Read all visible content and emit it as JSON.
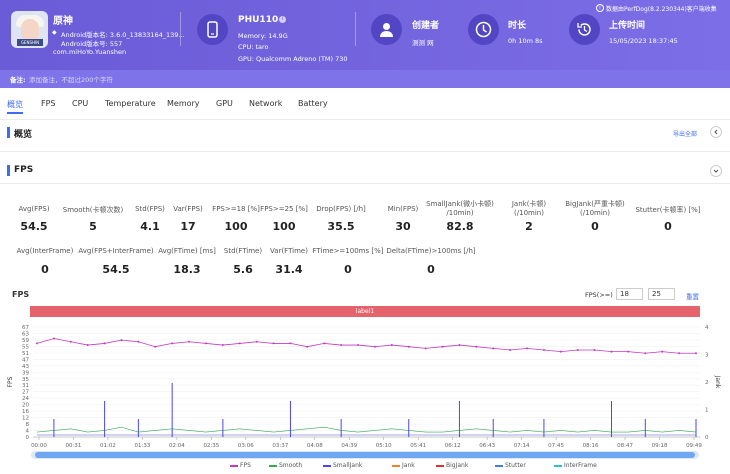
{
  "app": {
    "name": "原神",
    "version_name": "Android版本名: 3.6.0_13833164_139...",
    "version_code": "Android版本号: 557",
    "package": "com.miHoYo.Yuanshen"
  },
  "device": {
    "name": "PHU110",
    "memory": "Memory: 14.9G",
    "cpu": "CPU: taro",
    "gpu": "GPU: Qualcomm Adreno (TM) 730"
  },
  "creator": {
    "label": "创建者",
    "value": "测测 网"
  },
  "duration": {
    "label": "时长",
    "value": "0h 10m 8s"
  },
  "upload": {
    "label": "上传时间",
    "value": "15/05/2023 18:37:45"
  },
  "data_source": "数据由PerfDog(8.2.230344)客户端收集",
  "note": {
    "label": "备注:",
    "placeholder": "添加备注，不超过200个字符"
  },
  "tabs": [
    "概览",
    "FPS",
    "CPU",
    "Temperature",
    "Memory",
    "GPU",
    "Network",
    "Battery"
  ],
  "overview": {
    "title": "概览",
    "export": "导出全部"
  },
  "fps_section": {
    "title": "FPS"
  },
  "metrics_row1": [
    {
      "label": "Avg(FPS)",
      "value": "54.5"
    },
    {
      "label": "Smooth(卡顿次数)",
      "value": "5"
    },
    {
      "label": "Std(FPS)",
      "value": "4.1"
    },
    {
      "label": "Var(FPS)",
      "value": "17"
    },
    {
      "label": "FPS>=18 [%]",
      "value": "100"
    },
    {
      "label": "FPS>=25 [%]",
      "value": "100"
    },
    {
      "label": "Drop(FPS) [/h]",
      "value": "35.5"
    },
    {
      "label": "Min(FPS)",
      "value": "30"
    },
    {
      "label": "SmallJank(微小卡顿)\n/10min)",
      "value": "82.8"
    },
    {
      "label": "Jank(卡顿)\n(/10min)",
      "value": "2"
    },
    {
      "label": "BigJank(严重卡顿)\n(/10min)",
      "value": "0"
    },
    {
      "label": "Stutter(卡顿率) [%]",
      "value": "0"
    }
  ],
  "metrics_row2": [
    {
      "label": "Avg(InterFrame)",
      "value": "0"
    },
    {
      "label": "Avg(FPS+InterFrame)",
      "value": "54.5"
    },
    {
      "label": "Avg(FTime) [ms]",
      "value": "18.3"
    },
    {
      "label": "Std(FTime)",
      "value": "5.6"
    },
    {
      "label": "Var(FTime)",
      "value": "31.4"
    },
    {
      "label": "FTime>=100ms [%]",
      "value": "0"
    },
    {
      "label": "Delta(FTime)>100ms [/h]",
      "value": "0"
    }
  ],
  "chart_controls": {
    "title": "FPS",
    "threshold_label": "FPS(>=)",
    "threshold1": "18",
    "threshold2": "25",
    "reset": "重置",
    "label_bar": "label1"
  },
  "chart_data": {
    "type": "line",
    "x_ticks": [
      "00:00",
      "00:31",
      "01:02",
      "01:33",
      "02:04",
      "02:35",
      "03:06",
      "03:37",
      "04:08",
      "04:39",
      "05:10",
      "05:41",
      "06:12",
      "06:43",
      "07:14",
      "07:45",
      "08:16",
      "08:47",
      "09:18",
      "09:49"
    ],
    "y_left_ticks": [
      "0",
      "4",
      "8",
      "12",
      "16",
      "20",
      "24",
      "27",
      "31",
      "35",
      "39",
      "43",
      "47",
      "51",
      "55",
      "59",
      "63",
      "67"
    ],
    "y_right_ticks": [
      "0",
      "1",
      "2",
      "3",
      "4"
    ],
    "ylabel_left": "FPS",
    "ylabel_right": "Jank",
    "ylim_left": [
      0,
      67
    ],
    "ylim_right": [
      0,
      4
    ],
    "series": [
      {
        "name": "FPS",
        "color": "#c23bc2",
        "values": [
          57,
          60,
          58,
          56,
          57,
          59,
          58,
          55,
          57,
          58,
          57,
          56,
          57,
          58,
          57,
          57,
          55,
          57,
          56,
          56,
          55,
          56,
          55,
          54,
          55,
          56,
          55,
          54,
          53,
          54,
          53,
          52,
          53,
          53,
          52,
          52,
          51,
          52,
          51,
          51
        ]
      },
      {
        "name": "Smooth",
        "color": "#3aa655",
        "values": [
          3,
          4,
          5,
          3,
          4,
          6,
          3,
          4,
          5,
          4,
          3,
          4,
          5,
          4,
          3,
          4,
          5,
          6,
          4,
          3,
          4,
          5,
          4,
          3,
          3,
          4,
          5,
          4,
          3,
          4,
          3,
          4,
          3,
          4,
          3,
          3,
          4,
          3,
          4,
          3
        ]
      },
      {
        "name": "SmallJank",
        "color": "#4a4ae0",
        "values": [
          0,
          1,
          0,
          0,
          2,
          0,
          1,
          0,
          3,
          0,
          0,
          1,
          0,
          0,
          0,
          2,
          0,
          0,
          1,
          0,
          0,
          0,
          1,
          0,
          0,
          2,
          0,
          1,
          0,
          0,
          1,
          0,
          0,
          0,
          2,
          0,
          1,
          0,
          0,
          1
        ]
      },
      {
        "name": "Jank",
        "color": "#f08030",
        "values": []
      },
      {
        "name": "BigJank",
        "color": "#e03030",
        "values": []
      },
      {
        "name": "Stutter",
        "color": "#4a7ce0",
        "values": []
      },
      {
        "name": "InterFrame",
        "color": "#30c0c0",
        "values": []
      }
    ]
  }
}
